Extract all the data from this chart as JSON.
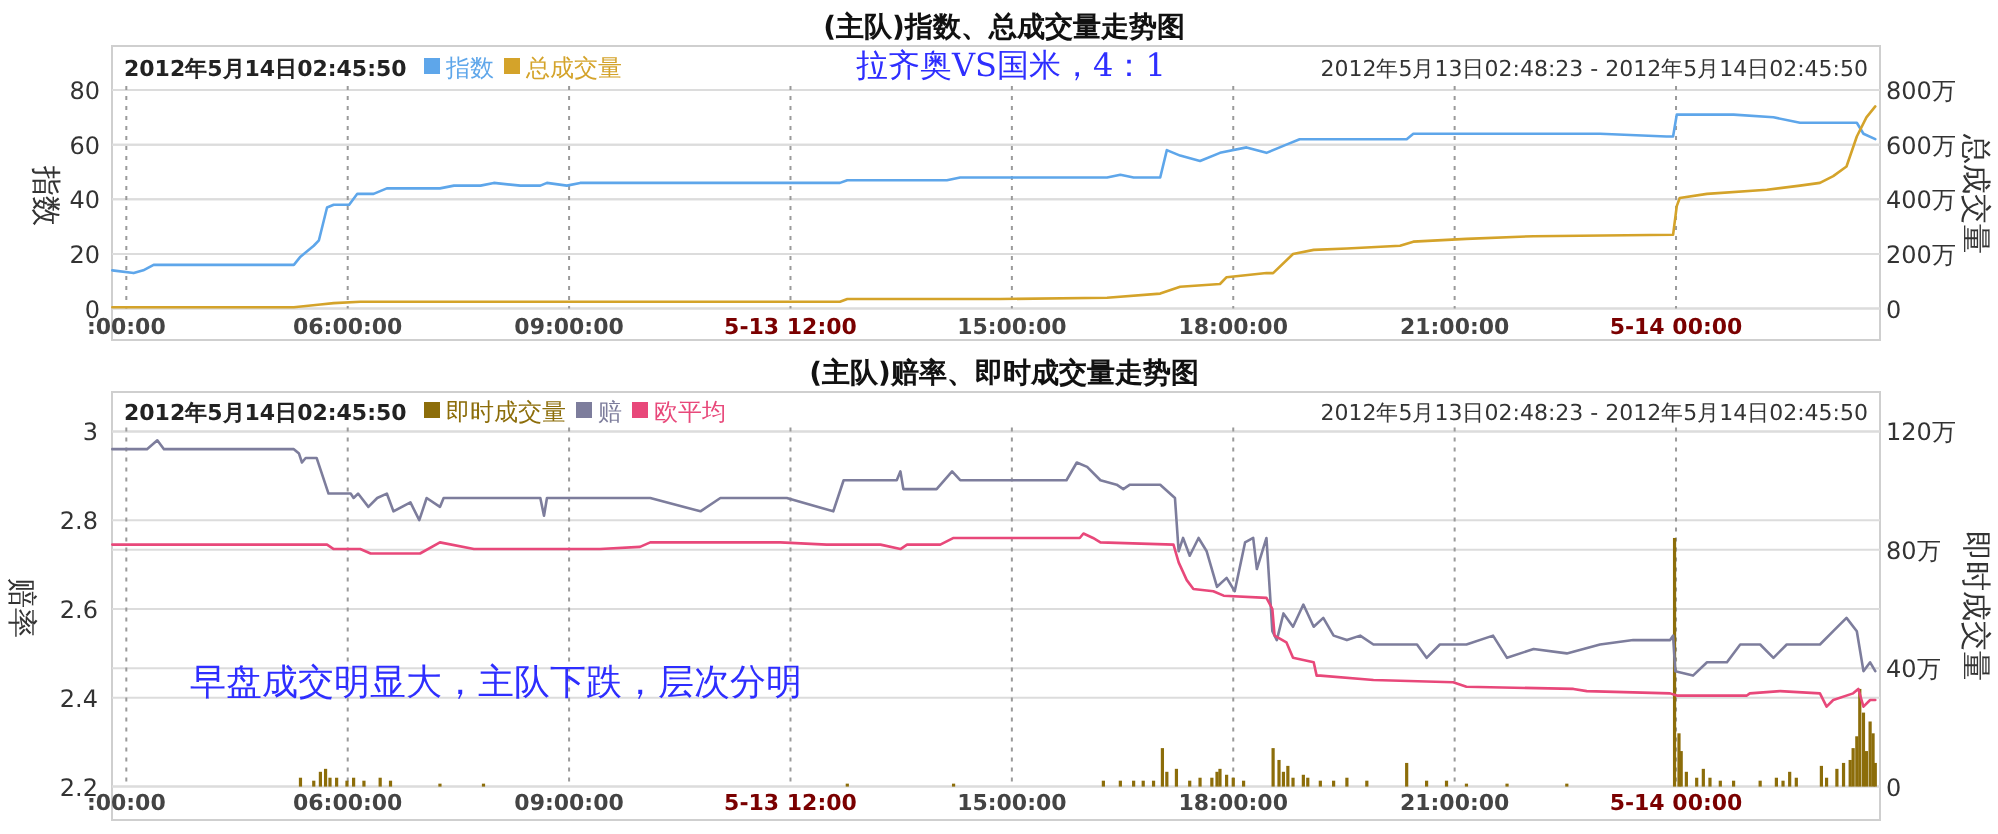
{
  "chart_data": [
    {
      "type": "line",
      "title": "(主队)指数、总成交量走势图",
      "annotations": [
        "2012年5月14日02:45:50",
        "拉齐奥VS国米，4：1",
        "2012年5月13日02:48:23 - 2012年5月14日02:45:50"
      ],
      "ylabel": "指数",
      "y2label": "总成交量",
      "xlim": [
        2.806,
        26.764
      ],
      "xticks": [
        {
          "value": 3,
          "label": ":00:00"
        },
        {
          "value": 6,
          "label": "06:00:00"
        },
        {
          "value": 9,
          "label": "09:00:00"
        },
        {
          "value": 12,
          "label": "5-13 12:00"
        },
        {
          "value": 15,
          "label": "15:00:00"
        },
        {
          "value": 18,
          "label": "18:00:00"
        },
        {
          "value": 21,
          "label": "21:00:00"
        },
        {
          "value": 24,
          "label": "5-14 00:00"
        }
      ],
      "ylim": [
        0,
        80
      ],
      "yticks": [
        0,
        20,
        40,
        60,
        80
      ],
      "y2lim": [
        0,
        800
      ],
      "y2ticks": [
        0,
        {
          "value": 200,
          "label": "200万"
        },
        {
          "value": 400,
          "label": "400万"
        },
        {
          "value": 600,
          "label": "600万"
        },
        {
          "value": 800,
          "label": "800万"
        }
      ],
      "grid": true,
      "legend": "top left",
      "series": [
        {
          "name": "指数",
          "color": "#5ea6ea",
          "x": [
            2.81,
            3.1,
            3.23,
            3.37,
            5.27,
            5.36,
            5.54,
            5.61,
            5.72,
            5.81,
            6.02,
            6.13,
            6.35,
            6.44,
            6.53,
            7.25,
            7.44,
            7.8,
            7.98,
            8.34,
            8.61,
            8.7,
            8.97,
            9.15,
            12.67,
            12.77,
            14.12,
            14.3,
            14.84,
            15.74,
            16.29,
            16.47,
            16.65,
            17.01,
            17.1,
            17.28,
            17.55,
            17.82,
            18.18,
            18.45,
            18.72,
            18.9,
            19.36,
            19.9,
            20.35,
            20.44,
            21.16,
            22.07,
            22.97,
            23.87,
            23.96,
            24.01,
            24.14,
            24.78,
            25.32,
            25.68,
            26.22,
            26.45,
            26.54,
            26.7
          ],
          "values": [
            14,
            13,
            14,
            16,
            16,
            19,
            23,
            25,
            37,
            38,
            38,
            42,
            42,
            43,
            44,
            44,
            45,
            45,
            46,
            45,
            45,
            46,
            45,
            46,
            46,
            47,
            47,
            48,
            48,
            48,
            48,
            49,
            48,
            48,
            58,
            56,
            54,
            57,
            59,
            57,
            60,
            62,
            62,
            62,
            62,
            64,
            64,
            64,
            64,
            63,
            63,
            71,
            71,
            71,
            70,
            68,
            68,
            68,
            64,
            62
          ]
        },
        {
          "name": "总成交量",
          "color": "#d4a32a",
          "axis": "y2",
          "x": [
            2.81,
            5.27,
            5.63,
            5.81,
            6.17,
            12.67,
            12.77,
            14.84,
            16.29,
            17.01,
            17.28,
            17.82,
            17.91,
            18.45,
            18.54,
            18.81,
            19.09,
            19.54,
            20.26,
            20.44,
            21.16,
            22.07,
            23.96,
            24.01,
            24.05,
            24.42,
            25.23,
            25.68,
            25.95,
            26.13,
            26.31,
            26.45,
            26.58,
            26.7
          ],
          "values": [
            5,
            5,
            15,
            20,
            25,
            25,
            35,
            35,
            40,
            55,
            80,
            90,
            115,
            130,
            130,
            200,
            215,
            220,
            230,
            245,
            255,
            265,
            270,
            375,
            405,
            420,
            435,
            450,
            460,
            485,
            520,
            630,
            700,
            740
          ]
        }
      ]
    },
    {
      "type": "line",
      "title": "(主队)赔率、即时成交量走势图",
      "annotations": [
        "2012年5月14日02:45:50",
        "2012年5月13日02:48:23 - 2012年5月14日02:45:50",
        "早盘成交明显大，主队下跌，层次分明"
      ],
      "ylabel": "赔率",
      "y2label": "即时成交量",
      "xlim": [
        2.806,
        26.764
      ],
      "xticks": [
        {
          "value": 3,
          "label": ":00:00"
        },
        {
          "value": 6,
          "label": "06:00:00"
        },
        {
          "value": 9,
          "label": "09:00:00"
        },
        {
          "value": 12,
          "label": "5-13 12:00"
        },
        {
          "value": 15,
          "label": "15:00:00"
        },
        {
          "value": 18,
          "label": "18:00:00"
        },
        {
          "value": 21,
          "label": "21:00:00"
        },
        {
          "value": 24,
          "label": "5-14 00:00"
        }
      ],
      "ylim": [
        2.2,
        3
      ],
      "yticks": [
        2.2,
        2.4,
        2.6,
        2.8,
        3
      ],
      "y2lim": [
        0,
        120
      ],
      "y2ticks": [
        0,
        {
          "value": 40,
          "label": "40万"
        },
        {
          "value": 80,
          "label": "80万"
        },
        {
          "value": 120,
          "label": "120万"
        }
      ],
      "grid": true,
      "legend": "top left",
      "series": [
        {
          "name": "即时成交量",
          "color": "#8c6d0a",
          "type": "bar",
          "axis": "y2",
          "x": [
            5.36,
            5.54,
            5.63,
            5.7,
            5.76,
            5.85,
            5.99,
            6.08,
            6.22,
            6.44,
            6.58,
            7.25,
            7.84,
            12.77,
            14.21,
            16.24,
            16.47,
            16.65,
            16.78,
            16.92,
            17.04,
            17.1,
            17.23,
            17.41,
            17.55,
            17.71,
            17.78,
            17.82,
            17.91,
            18.0,
            18.14,
            18.54,
            18.62,
            18.68,
            18.74,
            18.81,
            18.95,
            19.01,
            19.18,
            19.36,
            19.54,
            19.81,
            20.35,
            20.62,
            20.89,
            21.16,
            21.71,
            22.52,
            23.98,
            24.04,
            24.07,
            24.14,
            24.28,
            24.37,
            24.46,
            24.6,
            24.78,
            25.14,
            25.36,
            25.45,
            25.54,
            25.63,
            25.97,
            26.04,
            26.18,
            26.27,
            26.36,
            26.4,
            26.45,
            26.49,
            26.54,
            26.58,
            26.63,
            26.67,
            26.7
          ],
          "values": [
            3,
            2,
            5,
            6,
            3,
            3,
            2,
            3,
            2,
            3,
            2,
            1,
            1,
            1,
            1,
            2,
            2,
            2,
            2,
            2,
            13,
            5,
            6,
            2,
            3,
            3,
            5,
            6,
            4,
            3,
            2,
            13,
            9,
            5,
            7,
            3,
            4,
            3,
            2,
            2,
            3,
            2,
            8,
            2,
            2,
            1,
            1,
            1,
            84,
            18,
            12,
            5,
            3,
            6,
            3,
            2,
            2,
            2,
            3,
            2,
            5,
            3,
            7,
            3,
            6,
            8,
            9,
            13,
            17,
            33,
            25,
            12,
            22,
            18,
            8
          ]
        },
        {
          "name": "赔",
          "color": "#7d7d9c",
          "x": [
            2.81,
            3.28,
            3.42,
            3.51,
            5.27,
            5.34,
            5.38,
            5.43,
            5.58,
            5.74,
            6.04,
            6.08,
            6.14,
            6.28,
            6.4,
            6.53,
            6.62,
            6.85,
            6.97,
            7.07,
            7.25,
            7.3,
            8.61,
            8.66,
            8.7,
            10.1,
            10.78,
            11.05,
            11.95,
            12.58,
            12.72,
            13.44,
            13.49,
            13.53,
            13.98,
            14.19,
            14.3,
            15.74,
            15.88,
            16.02,
            16.2,
            16.42,
            16.51,
            16.6,
            17.01,
            17.21,
            17.26,
            17.32,
            17.41,
            17.53,
            17.64,
            17.78,
            17.91,
            18.02,
            18.16,
            18.27,
            18.32,
            18.45,
            18.53,
            18.59,
            18.68,
            18.81,
            18.95,
            19.09,
            19.22,
            19.36,
            19.54,
            19.72,
            19.9,
            20.26,
            20.49,
            20.62,
            20.8,
            21.16,
            21.52,
            21.71,
            22.07,
            22.52,
            22.97,
            23.42,
            23.92,
            23.96,
            23.99,
            24.23,
            24.42,
            24.69,
            24.87,
            25.14,
            25.32,
            25.5,
            25.95,
            26.13,
            26.31,
            26.45,
            26.54,
            26.63,
            26.7
          ],
          "values": [
            2.96,
            2.96,
            2.98,
            2.96,
            2.96,
            2.95,
            2.93,
            2.94,
            2.94,
            2.86,
            2.86,
            2.85,
            2.86,
            2.83,
            2.85,
            2.86,
            2.82,
            2.84,
            2.8,
            2.85,
            2.83,
            2.85,
            2.85,
            2.81,
            2.85,
            2.85,
            2.82,
            2.85,
            2.85,
            2.82,
            2.89,
            2.89,
            2.91,
            2.87,
            2.87,
            2.91,
            2.89,
            2.89,
            2.93,
            2.92,
            2.89,
            2.88,
            2.87,
            2.88,
            2.88,
            2.85,
            2.73,
            2.76,
            2.72,
            2.76,
            2.73,
            2.65,
            2.67,
            2.64,
            2.75,
            2.76,
            2.69,
            2.76,
            2.55,
            2.53,
            2.59,
            2.56,
            2.61,
            2.56,
            2.58,
            2.54,
            2.53,
            2.54,
            2.52,
            2.52,
            2.52,
            2.49,
            2.52,
            2.52,
            2.54,
            2.49,
            2.51,
            2.5,
            2.52,
            2.53,
            2.53,
            2.54,
            2.46,
            2.45,
            2.48,
            2.48,
            2.52,
            2.52,
            2.49,
            2.52,
            2.52,
            2.55,
            2.58,
            2.55,
            2.46,
            2.48,
            2.46
          ]
        },
        {
          "name": "欧平均",
          "color": "#e8487a",
          "x": [
            2.81,
            5.72,
            5.81,
            6.17,
            6.31,
            6.98,
            7.25,
            7.71,
            9.42,
            9.96,
            10.1,
            11.86,
            12.49,
            13.22,
            13.49,
            13.58,
            14.03,
            14.21,
            15.92,
            15.97,
            16.1,
            16.2,
            17.19,
            17.26,
            17.37,
            17.46,
            17.73,
            17.87,
            18.45,
            18.53,
            18.56,
            18.72,
            18.81,
            19.09,
            19.13,
            19.18,
            19.9,
            20.98,
            21.16,
            22.61,
            22.79,
            23.92,
            24.01,
            24.96,
            25.0,
            25.41,
            25.95,
            26.04,
            26.13,
            26.4,
            26.47,
            26.54,
            26.63,
            26.7
          ],
          "values": [
            2.745,
            2.745,
            2.735,
            2.735,
            2.725,
            2.725,
            2.75,
            2.735,
            2.735,
            2.74,
            2.75,
            2.75,
            2.745,
            2.745,
            2.735,
            2.745,
            2.745,
            2.76,
            2.76,
            2.77,
            2.76,
            2.75,
            2.745,
            2.705,
            2.665,
            2.645,
            2.64,
            2.63,
            2.625,
            2.6,
            2.54,
            2.525,
            2.49,
            2.48,
            2.45,
            2.45,
            2.44,
            2.435,
            2.425,
            2.42,
            2.415,
            2.41,
            2.405,
            2.405,
            2.41,
            2.415,
            2.41,
            2.38,
            2.395,
            2.41,
            2.42,
            2.38,
            2.395,
            2.395
          ]
        }
      ]
    }
  ]
}
